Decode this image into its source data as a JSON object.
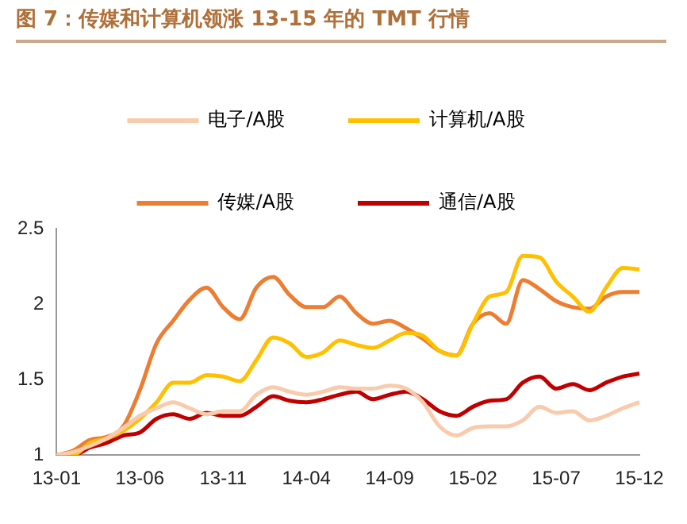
{
  "chart_data": {
    "type": "line",
    "title": "图 7：传媒和计算机领涨 13-15 年的 TMT 行情",
    "categories": [
      "13-01",
      null,
      null,
      null,
      null,
      "13-06",
      null,
      null,
      null,
      null,
      "13-11",
      null,
      null,
      null,
      null,
      "14-04",
      null,
      null,
      null,
      null,
      "14-09",
      null,
      null,
      null,
      null,
      "15-02",
      null,
      null,
      null,
      null,
      "15-07",
      null,
      null,
      null,
      null,
      "15-12"
    ],
    "series": [
      {
        "name": "电子/A股",
        "color": "#f8cbad",
        "values": [
          1.0,
          1.02,
          1.06,
          1.11,
          1.18,
          1.26,
          1.31,
          1.35,
          1.31,
          1.27,
          1.29,
          1.29,
          1.4,
          1.45,
          1.42,
          1.4,
          1.42,
          1.45,
          1.44,
          1.44,
          1.46,
          1.44,
          1.35,
          1.19,
          1.13,
          1.18,
          1.19,
          1.19,
          1.23,
          1.32,
          1.28,
          1.29,
          1.23,
          1.26,
          1.31,
          1.35
        ]
      },
      {
        "name": "计算机/A股",
        "color": "#ffc000",
        "values": [
          1.0,
          1.0,
          1.08,
          1.11,
          1.16,
          1.24,
          1.35,
          1.48,
          1.48,
          1.53,
          1.52,
          1.49,
          1.63,
          1.78,
          1.74,
          1.65,
          1.68,
          1.76,
          1.73,
          1.71,
          1.76,
          1.81,
          1.79,
          1.69,
          1.66,
          1.87,
          2.05,
          2.08,
          2.32,
          2.31,
          2.15,
          2.05,
          1.95,
          2.11,
          2.24,
          2.23
        ]
      },
      {
        "name": "传媒/A股",
        "color": "#ed7d31",
        "values": [
          1.0,
          1.03,
          1.1,
          1.12,
          1.19,
          1.43,
          1.74,
          1.89,
          2.03,
          2.11,
          1.98,
          1.9,
          2.11,
          2.18,
          2.06,
          1.98,
          1.98,
          2.05,
          1.94,
          1.87,
          1.89,
          1.84,
          1.77,
          1.69,
          1.66,
          1.87,
          1.94,
          1.87,
          2.16,
          2.1,
          2.02,
          1.98,
          1.97,
          2.05,
          2.08,
          2.08
        ]
      },
      {
        "name": "通信/A股",
        "color": "#c00000",
        "values": [
          1.0,
          1.0,
          1.05,
          1.08,
          1.13,
          1.15,
          1.24,
          1.27,
          1.24,
          1.28,
          1.26,
          1.26,
          1.32,
          1.39,
          1.36,
          1.35,
          1.37,
          1.4,
          1.42,
          1.37,
          1.4,
          1.42,
          1.37,
          1.29,
          1.26,
          1.32,
          1.36,
          1.37,
          1.48,
          1.52,
          1.44,
          1.47,
          1.43,
          1.48,
          1.52,
          1.54
        ]
      }
    ],
    "ylim": [
      1,
      2.5
    ],
    "yticks": [
      1,
      1.5,
      2,
      2.5
    ],
    "grid": false,
    "legend": "top",
    "marker": "none",
    "line_style": "solid"
  }
}
